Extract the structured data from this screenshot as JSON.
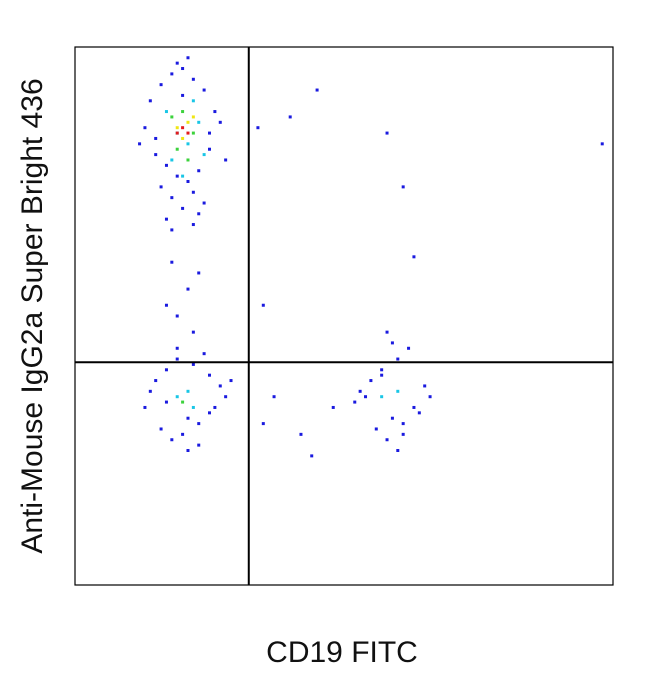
{
  "chart_data": {
    "type": "scatter",
    "x_label": "CD19 FITC",
    "y_label": "Anti-Mouse IgG2a Super Bright 436",
    "xlim": [
      0,
      100
    ],
    "ylim": [
      0,
      100
    ],
    "quadrant": {
      "x": 32.3,
      "y": 41.4
    },
    "series": [
      {
        "color": "#1a1adf",
        "x": [
          14,
          16,
          18,
          20,
          22,
          24,
          26,
          15,
          17,
          19,
          21,
          23,
          25,
          13,
          27,
          18,
          22,
          20,
          16,
          24,
          19,
          21,
          17,
          23,
          15,
          25,
          20,
          18,
          22,
          12,
          28,
          18,
          21,
          19,
          22,
          17,
          23,
          15,
          17,
          19,
          21,
          23,
          25,
          27,
          16,
          18,
          20,
          22,
          24,
          26,
          14,
          28,
          19,
          23,
          17,
          25,
          21,
          29,
          13,
          53,
          55,
          57,
          59,
          61,
          63,
          65,
          56,
          58,
          60,
          62,
          54,
          64,
          59,
          57,
          61,
          52,
          66,
          58,
          60,
          35,
          37,
          42,
          45,
          40,
          58,
          98,
          61,
          63,
          35,
          44,
          48,
          34
        ],
        "values": [
          90,
          93,
          95,
          96,
          94,
          92,
          88,
          80,
          78,
          76,
          75,
          77,
          81,
          85,
          86,
          72,
          73,
          70,
          74,
          71,
          97,
          98,
          68,
          69,
          83,
          84,
          91,
          66,
          67,
          82,
          79,
          60,
          55,
          50,
          47,
          52,
          58,
          38,
          40,
          42,
          31,
          30,
          32,
          37,
          29,
          27,
          28,
          41,
          43,
          33,
          36,
          35,
          44,
          26,
          34,
          39,
          25,
          38,
          33,
          36,
          38,
          40,
          31,
          30,
          33,
          37,
          29,
          27,
          42,
          44,
          35,
          32,
          45,
          39,
          28,
          34,
          35,
          47,
          25,
          30,
          35,
          28,
          92,
          87,
          84,
          82,
          74,
          61,
          52,
          24,
          33,
          85
        ]
      },
      {
        "color": "#19c6e6",
        "x": [
          17,
          19,
          21,
          23,
          18,
          22,
          20,
          24,
          19,
          21,
          22,
          57,
          60
        ],
        "values": [
          88,
          84,
          82,
          86,
          79,
          90,
          76,
          80,
          35,
          36,
          33,
          35,
          36
        ]
      },
      {
        "color": "#3cd23c",
        "x": [
          18,
          20,
          22,
          19,
          21,
          20
        ],
        "values": [
          87,
          88,
          84,
          81,
          79,
          34
        ]
      },
      {
        "color": "#f0e614",
        "x": [
          19,
          21,
          20,
          22
        ],
        "values": [
          85,
          86,
          83,
          87
        ]
      },
      {
        "color": "#e31a1c",
        "x": [
          20,
          21,
          19
        ],
        "values": [
          85,
          84,
          84
        ]
      }
    ]
  }
}
